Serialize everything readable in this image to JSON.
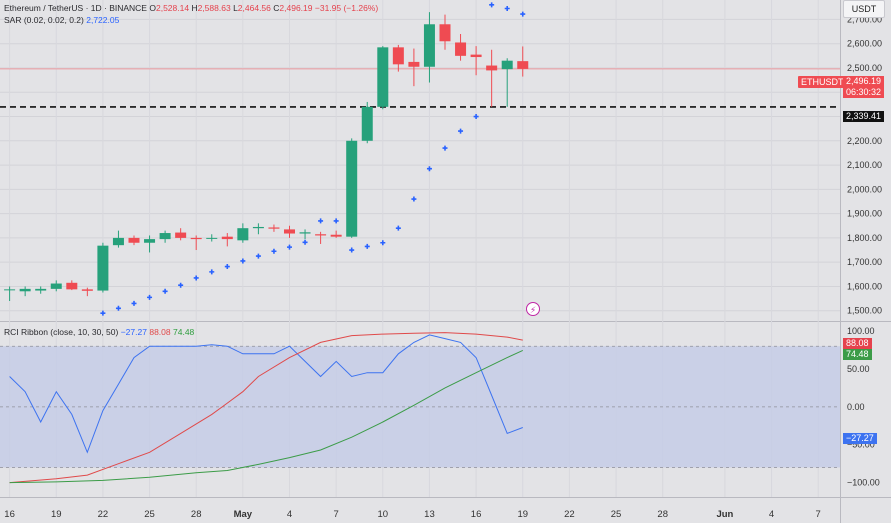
{
  "legend": {
    "symbol": "Ethereum / TetherUS · 1D · BINANCE",
    "o_label": "O",
    "o": "2,528.14",
    "h_label": "H",
    "h": "2,588.63",
    "l_label": "L",
    "l": "2,464.56",
    "c_label": "C",
    "c": "2,496.19",
    "change": "−31.95 (−1.26%)",
    "sar_label": "SAR (0.02, 0.02, 0.2)",
    "sar_value": "2,722.05",
    "rci_label": "RCI Ribbon (close, 10, 30, 50)",
    "rci_short": "−27.27",
    "rci_middle": "88.08",
    "rci_long": "74.48"
  },
  "currency": "USDT",
  "ticker_tag": "ETHUSDT",
  "price_tags": {
    "last": "2,496.19",
    "countdown": "06:30:32",
    "level": "2,339.41",
    "rci_middle": "88.08",
    "rci_long": "74.48",
    "rci_short": "−27.27"
  },
  "colors": {
    "up": "#26a17b",
    "down": "#ef4b52",
    "sar": "#2962ff",
    "rci_short": "#3d73f0",
    "rci_middle": "#e04a4a",
    "rci_long": "#3c9c48",
    "band": "#c5cde6"
  },
  "chart_data": [
    {
      "type": "candlestick",
      "title": "Ethereum / TetherUS · 1D · BINANCE",
      "x_ticks": [
        "16",
        "19",
        "22",
        "25",
        "28",
        "May",
        "4",
        "7",
        "10",
        "13",
        "16",
        "19",
        "22",
        "25",
        "28",
        "Jun",
        "4",
        "7"
      ],
      "x_tick_day_index": [
        0,
        3,
        6,
        9,
        12,
        15,
        18,
        21,
        24,
        27,
        30,
        33,
        36,
        39,
        42,
        46,
        49,
        52
      ],
      "y_ticks": [
        1500,
        1600,
        1700,
        1800,
        1900,
        2000,
        2100,
        2200,
        2300,
        2400,
        2500,
        2600,
        2700
      ],
      "y_tick_labels": [
        "1,500.00",
        "1,600.00",
        "1,700.00",
        "1,800.00",
        "1,900.00",
        "2,000.00",
        "2,100.00",
        "2,200.00",
        "2,300.00",
        "2,400.00",
        "2,500.00",
        "2,600.00",
        "2,700.00"
      ],
      "ylim": [
        1470,
        2780
      ],
      "horizontal_level": 2339.41,
      "last_price": 2496.19,
      "candles": [
        {
          "d": 0,
          "o": 1585,
          "h": 1600,
          "l": 1540,
          "c": 1588
        },
        {
          "d": 1,
          "o": 1580,
          "h": 1600,
          "l": 1560,
          "c": 1590
        },
        {
          "d": 2,
          "o": 1583,
          "h": 1600,
          "l": 1570,
          "c": 1590
        },
        {
          "d": 3,
          "o": 1590,
          "h": 1625,
          "l": 1580,
          "c": 1612
        },
        {
          "d": 4,
          "o": 1615,
          "h": 1625,
          "l": 1585,
          "c": 1588
        },
        {
          "d": 5,
          "o": 1588,
          "h": 1595,
          "l": 1560,
          "c": 1582
        },
        {
          "d": 6,
          "o": 1583,
          "h": 1780,
          "l": 1575,
          "c": 1768
        },
        {
          "d": 7,
          "o": 1770,
          "h": 1830,
          "l": 1760,
          "c": 1800
        },
        {
          "d": 8,
          "o": 1800,
          "h": 1810,
          "l": 1770,
          "c": 1780
        },
        {
          "d": 9,
          "o": 1780,
          "h": 1810,
          "l": 1740,
          "c": 1795
        },
        {
          "d": 10,
          "o": 1795,
          "h": 1830,
          "l": 1780,
          "c": 1820
        },
        {
          "d": 11,
          "o": 1822,
          "h": 1840,
          "l": 1790,
          "c": 1800
        },
        {
          "d": 12,
          "o": 1800,
          "h": 1810,
          "l": 1750,
          "c": 1795
        },
        {
          "d": 13,
          "o": 1797,
          "h": 1815,
          "l": 1785,
          "c": 1800
        },
        {
          "d": 14,
          "o": 1805,
          "h": 1820,
          "l": 1765,
          "c": 1795
        },
        {
          "d": 15,
          "o": 1790,
          "h": 1860,
          "l": 1780,
          "c": 1840
        },
        {
          "d": 16,
          "o": 1840,
          "h": 1860,
          "l": 1815,
          "c": 1845
        },
        {
          "d": 17,
          "o": 1843,
          "h": 1855,
          "l": 1825,
          "c": 1838
        },
        {
          "d": 18,
          "o": 1835,
          "h": 1850,
          "l": 1800,
          "c": 1818
        },
        {
          "d": 19,
          "o": 1818,
          "h": 1835,
          "l": 1795,
          "c": 1823
        },
        {
          "d": 20,
          "o": 1815,
          "h": 1825,
          "l": 1775,
          "c": 1810
        },
        {
          "d": 21,
          "o": 1813,
          "h": 1830,
          "l": 1800,
          "c": 1805
        },
        {
          "d": 22,
          "o": 1805,
          "h": 2210,
          "l": 1800,
          "c": 2200
        },
        {
          "d": 23,
          "o": 2200,
          "h": 2360,
          "l": 2190,
          "c": 2340
        },
        {
          "d": 24,
          "o": 2340,
          "h": 2590,
          "l": 2330,
          "c": 2585
        },
        {
          "d": 25,
          "o": 2585,
          "h": 2595,
          "l": 2485,
          "c": 2515
        },
        {
          "d": 26,
          "o": 2525,
          "h": 2580,
          "l": 2425,
          "c": 2505
        },
        {
          "d": 27,
          "o": 2505,
          "h": 2730,
          "l": 2440,
          "c": 2680
        },
        {
          "d": 28,
          "o": 2680,
          "h": 2720,
          "l": 2575,
          "c": 2610
        },
        {
          "d": 29,
          "o": 2605,
          "h": 2640,
          "l": 2530,
          "c": 2550
        },
        {
          "d": 30,
          "o": 2555,
          "h": 2590,
          "l": 2470,
          "c": 2545
        },
        {
          "d": 31,
          "o": 2510,
          "h": 2575,
          "l": 2340,
          "c": 2490
        },
        {
          "d": 32,
          "o": 2495,
          "h": 2540,
          "l": 2340,
          "c": 2530
        },
        {
          "d": 33,
          "o": 2528.14,
          "h": 2588.63,
          "l": 2464.56,
          "c": 2496.19
        }
      ],
      "sar": [
        {
          "d": 0,
          "v": 1440
        },
        {
          "d": 1,
          "v": 1440
        },
        {
          "d": 2,
          "v": 1440
        },
        {
          "d": 3,
          "v": 1440
        },
        {
          "d": 4,
          "v": 1455
        },
        {
          "d": 5,
          "v": 1470
        },
        {
          "d": 6,
          "v": 1490
        },
        {
          "d": 7,
          "v": 1510
        },
        {
          "d": 8,
          "v": 1530
        },
        {
          "d": 9,
          "v": 1555
        },
        {
          "d": 10,
          "v": 1580
        },
        {
          "d": 11,
          "v": 1605
        },
        {
          "d": 12,
          "v": 1635
        },
        {
          "d": 13,
          "v": 1660
        },
        {
          "d": 14,
          "v": 1682
        },
        {
          "d": 15,
          "v": 1705
        },
        {
          "d": 16,
          "v": 1725
        },
        {
          "d": 17,
          "v": 1745
        },
        {
          "d": 18,
          "v": 1762
        },
        {
          "d": 19,
          "v": 1782
        },
        {
          "d": 20,
          "v": 1870
        },
        {
          "d": 21,
          "v": 1870
        },
        {
          "d": 22,
          "v": 1750
        },
        {
          "d": 23,
          "v": 1765
        },
        {
          "d": 24,
          "v": 1780
        },
        {
          "d": 25,
          "v": 1840
        },
        {
          "d": 26,
          "v": 1960
        },
        {
          "d": 27,
          "v": 2085
        },
        {
          "d": 28,
          "v": 2170
        },
        {
          "d": 29,
          "v": 2240
        },
        {
          "d": 30,
          "v": 2300
        },
        {
          "d": 31,
          "v": 2760
        },
        {
          "d": 32,
          "v": 2745
        },
        {
          "d": 33,
          "v": 2722.05
        }
      ]
    },
    {
      "type": "line",
      "title": "RCI Ribbon (close, 10, 30, 50)",
      "y_ticks": [
        100,
        50,
        0,
        -50,
        -100
      ],
      "y_tick_labels": [
        "100.00",
        "50.00",
        "0.00",
        "−50.00",
        "−100.00"
      ],
      "ylim": [
        -115,
        108
      ],
      "band": [
        -80,
        80
      ],
      "series": [
        {
          "key": "short",
          "points": [
            {
              "d": 0,
              "v": 40
            },
            {
              "d": 1,
              "v": 20
            },
            {
              "d": 2,
              "v": -20
            },
            {
              "d": 3,
              "v": 20
            },
            {
              "d": 4,
              "v": -10
            },
            {
              "d": 5,
              "v": -60
            },
            {
              "d": 6,
              "v": -5
            },
            {
              "d": 7,
              "v": 30
            },
            {
              "d": 8,
              "v": 65
            },
            {
              "d": 9,
              "v": 80
            },
            {
              "d": 10,
              "v": 80
            },
            {
              "d": 11,
              "v": 80
            },
            {
              "d": 12,
              "v": 80
            },
            {
              "d": 13,
              "v": 82
            },
            {
              "d": 14,
              "v": 80
            },
            {
              "d": 15,
              "v": 70
            },
            {
              "d": 16,
              "v": 70
            },
            {
              "d": 17,
              "v": 70
            },
            {
              "d": 18,
              "v": 80
            },
            {
              "d": 19,
              "v": 60
            },
            {
              "d": 20,
              "v": 40
            },
            {
              "d": 21,
              "v": 60
            },
            {
              "d": 22,
              "v": 40
            },
            {
              "d": 23,
              "v": 45
            },
            {
              "d": 24,
              "v": 45
            },
            {
              "d": 25,
              "v": 70
            },
            {
              "d": 26,
              "v": 85
            },
            {
              "d": 27,
              "v": 95
            },
            {
              "d": 28,
              "v": 90
            },
            {
              "d": 29,
              "v": 85
            },
            {
              "d": 30,
              "v": 65
            },
            {
              "d": 31,
              "v": 15
            },
            {
              "d": 32,
              "v": -35
            },
            {
              "d": 33,
              "v": -27.27
            }
          ]
        },
        {
          "key": "middle",
          "points": [
            {
              "d": 0,
              "v": -100
            },
            {
              "d": 3,
              "v": -95
            },
            {
              "d": 5,
              "v": -90
            },
            {
              "d": 7,
              "v": -75
            },
            {
              "d": 9,
              "v": -60
            },
            {
              "d": 11,
              "v": -35
            },
            {
              "d": 13,
              "v": -10
            },
            {
              "d": 14,
              "v": 5
            },
            {
              "d": 15,
              "v": 20
            },
            {
              "d": 16,
              "v": 40
            },
            {
              "d": 18,
              "v": 65
            },
            {
              "d": 20,
              "v": 85
            },
            {
              "d": 22,
              "v": 94
            },
            {
              "d": 24,
              "v": 96
            },
            {
              "d": 26,
              "v": 97
            },
            {
              "d": 28,
              "v": 98
            },
            {
              "d": 30,
              "v": 96
            },
            {
              "d": 32,
              "v": 92
            },
            {
              "d": 33,
              "v": 88.08
            }
          ]
        },
        {
          "key": "long",
          "points": [
            {
              "d": 0,
              "v": -100
            },
            {
              "d": 3,
              "v": -99
            },
            {
              "d": 6,
              "v": -97
            },
            {
              "d": 9,
              "v": -93
            },
            {
              "d": 12,
              "v": -87
            },
            {
              "d": 14,
              "v": -84
            },
            {
              "d": 16,
              "v": -76
            },
            {
              "d": 18,
              "v": -67
            },
            {
              "d": 20,
              "v": -57
            },
            {
              "d": 22,
              "v": -40
            },
            {
              "d": 24,
              "v": -20
            },
            {
              "d": 26,
              "v": 2
            },
            {
              "d": 28,
              "v": 25
            },
            {
              "d": 30,
              "v": 45
            },
            {
              "d": 32,
              "v": 65
            },
            {
              "d": 33,
              "v": 74.48
            }
          ]
        }
      ]
    }
  ]
}
